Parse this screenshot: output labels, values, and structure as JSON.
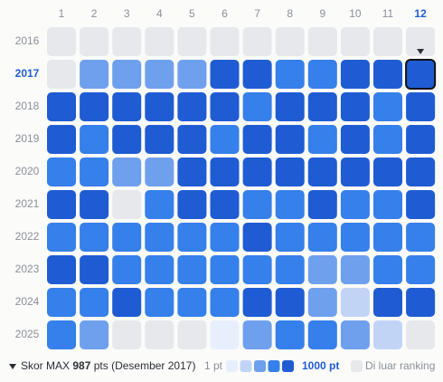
{
  "chart_data": {
    "type": "heatmap",
    "columns": [
      "1",
      "2",
      "3",
      "4",
      "5",
      "6",
      "7",
      "8",
      "9",
      "10",
      "11",
      "12"
    ],
    "rows": [
      "2016",
      "2017",
      "2018",
      "2019",
      "2020",
      "2021",
      "2022",
      "2023",
      "2024",
      "2025"
    ],
    "values": [
      [
        null,
        null,
        null,
        null,
        null,
        null,
        null,
        null,
        null,
        null,
        null,
        null
      ],
      [
        null,
        3,
        3,
        3,
        3,
        5,
        5,
        4,
        4,
        5,
        5,
        5
      ],
      [
        5,
        5,
        5,
        5,
        5,
        5,
        4,
        5,
        5,
        5,
        4,
        5
      ],
      [
        5,
        4,
        5,
        5,
        5,
        4,
        5,
        5,
        4,
        5,
        4,
        5
      ],
      [
        4,
        4,
        3,
        3,
        5,
        5,
        5,
        5,
        5,
        5,
        5,
        5
      ],
      [
        5,
        5,
        null,
        4,
        5,
        5,
        4,
        4,
        5,
        4,
        4,
        5
      ],
      [
        4,
        4,
        4,
        4,
        4,
        4,
        5,
        4,
        4,
        4,
        4,
        4
      ],
      [
        5,
        5,
        4,
        4,
        4,
        4,
        4,
        4,
        3,
        3,
        4,
        4
      ],
      [
        4,
        4,
        5,
        4,
        4,
        4,
        5,
        5,
        3,
        2,
        5,
        5
      ],
      [
        4,
        3,
        null,
        null,
        null,
        1,
        3,
        4,
        4,
        3,
        2,
        null
      ]
    ],
    "colors": [
      "#e8effc",
      "#c2d4f6",
      "#6fa0ee",
      "#3580ea",
      "#1f5cd3"
    ],
    "outside_color": "#e6e8ec",
    "highlight": {
      "row": "2017",
      "column": "12"
    },
    "max_label": "Skor MAX",
    "max_value": 987,
    "max_suffix": "pts (Desember 2017)",
    "legend_min": "1 pt",
    "legend_max": "1000 pt",
    "outside_label": "Di luar ranking"
  }
}
